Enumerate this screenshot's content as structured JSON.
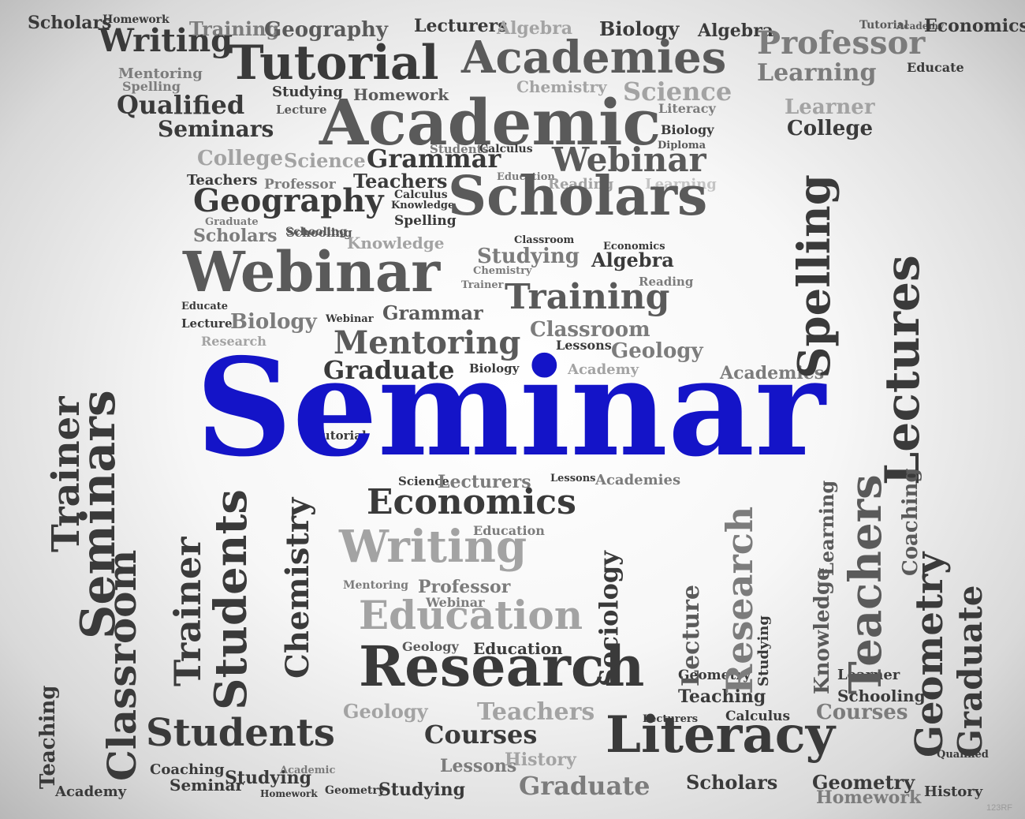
{
  "image_title": "Seminar",
  "central_word": "Seminar",
  "colors": {
    "central_word": "#1414c8",
    "text_dark": "#3a3a3a",
    "text_mid": "#5a5a5a",
    "text_light": "#7c7c7c",
    "text_faint": "#a3a3a3",
    "background_center": "#ffffff",
    "background_edge": "#b8b8b8"
  },
  "words": [
    "Scholars",
    "Homework",
    "Writing",
    "Training",
    "Geography",
    "Lecturers",
    "Algebra",
    "Biology",
    "Algebra",
    "Tutorial",
    "Academy",
    "Economics",
    "Tutorial",
    "Academies",
    "Professor",
    "Mentoring",
    "Spelling",
    "Chemistry",
    "Science",
    "Learning",
    "Educate",
    "Qualified",
    "Studying",
    "Homework",
    "Lecture",
    "Literacy",
    "Learner",
    "Academic",
    "Seminars",
    "Biology",
    "College",
    "College",
    "Science",
    "Grammar",
    "Webinar",
    "Students",
    "Calculus",
    "Diploma",
    "Education",
    "Teachers",
    "Professor",
    "Teachers",
    "Geography",
    "Calculus",
    "Knowledge",
    "Reading",
    "Learning",
    "Scholars",
    "Spelling",
    "Graduate",
    "Schooling",
    "Scholars",
    "Schooling",
    "Knowledge",
    "Classroom",
    "Economics",
    "Studying",
    "Algebra",
    "Webinar",
    "Chemistry",
    "Reading",
    "Training",
    "Educate",
    "Trainer",
    "Grammar",
    "Lecture",
    "Biology",
    "Webinar",
    "Classroom",
    "Research",
    "Mentoring",
    "Lessons",
    "Geology",
    "Graduate",
    "Biology",
    "Academy",
    "Academies",
    "Tutorial",
    "Science",
    "Lecturers",
    "Lessons",
    "Academies",
    "Economics",
    "Writing",
    "Education",
    "Professor",
    "Webinar",
    "Mentoring",
    "Education",
    "Research",
    "Geology",
    "Education",
    "Geometry",
    "Teaching",
    "Geology",
    "Teachers",
    "Courses",
    "Lecturers",
    "Literacy",
    "Calculus",
    "Courses",
    "Lessons",
    "History",
    "Students",
    "Coaching",
    "Academic",
    "Seminar",
    "Studying",
    "Academy",
    "Homework",
    "Geometry",
    "Studying",
    "Graduate",
    "Scholars",
    "Geometry",
    "History",
    "Learner",
    "Schooling",
    "Qualified",
    "Homework",
    "Trainer",
    "Seminars",
    "Classroom",
    "Trainer",
    "Students",
    "Chemistry",
    "Teaching",
    "Spelling",
    "Lectures",
    "Geometry",
    "Graduate",
    "Teachers",
    "Knowledge",
    "Learning",
    "Lecture",
    "Research",
    "Sociology",
    "Studying",
    "Coaching",
    "Calculus",
    "Academic"
  ],
  "watermark": "123RF"
}
